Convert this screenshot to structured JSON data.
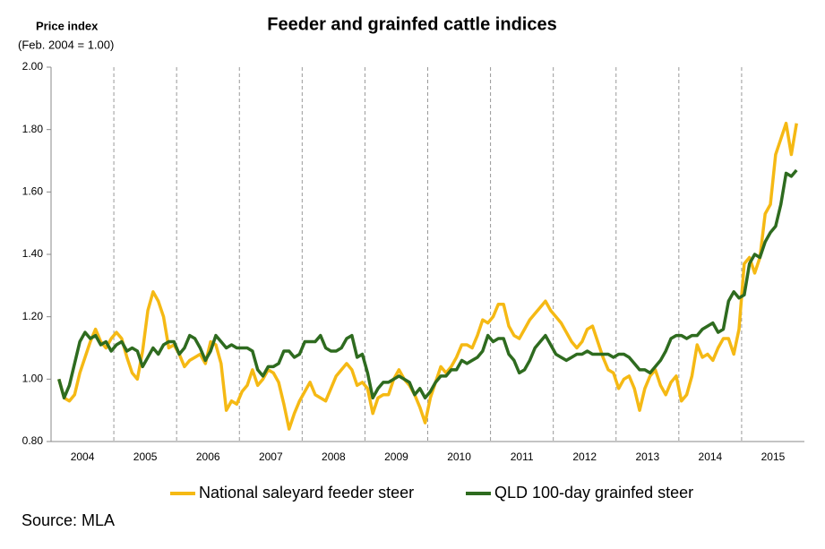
{
  "chart_data": {
    "type": "line",
    "title": "Feeder and grainfed cattle indices",
    "y_axis_title": "Price index",
    "y_axis_subtitle": "(Feb. 2004 = 1.00)",
    "source": "Source: MLA",
    "categories": [
      null,
      null,
      null,
      null,
      null,
      null,
      "2004",
      null,
      null,
      null,
      null,
      null,
      null,
      null,
      null,
      null,
      null,
      null,
      "2005",
      null,
      null,
      null,
      null,
      null,
      null,
      null,
      null,
      null,
      null,
      null,
      "2006",
      null,
      null,
      null,
      null,
      null,
      null,
      null,
      null,
      null,
      null,
      null,
      "2007",
      null,
      null,
      null,
      null,
      null,
      null,
      null,
      null,
      null,
      null,
      null,
      "2008",
      null,
      null,
      null,
      null,
      null,
      null,
      null,
      null,
      null,
      null,
      null,
      "2009",
      null,
      null,
      null,
      null,
      null,
      null,
      null,
      null,
      null,
      null,
      null,
      "2010",
      null,
      null,
      null,
      null,
      null,
      null,
      null,
      null,
      null,
      null,
      null,
      "2011",
      null,
      null,
      null,
      null,
      null,
      null,
      null,
      null,
      null,
      null,
      null,
      "2012",
      null,
      null,
      null,
      null,
      null,
      null,
      null,
      null,
      null,
      null,
      null,
      "2013",
      null,
      null,
      null,
      null,
      null,
      null,
      null,
      null,
      null,
      null,
      null,
      "2014",
      null,
      null,
      null,
      null,
      null,
      null,
      null,
      null,
      null,
      null,
      null,
      "2015",
      null,
      null,
      null,
      null,
      null
    ],
    "series": [
      {
        "name": "National saleyard feeder steer",
        "color": "#f5b914",
        "values": [
          null,
          1.0,
          0.94,
          0.93,
          0.95,
          1.02,
          1.07,
          1.12,
          1.16,
          1.12,
          1.1,
          1.13,
          1.15,
          1.13,
          1.07,
          1.02,
          1.0,
          1.09,
          1.22,
          1.28,
          1.25,
          1.2,
          1.1,
          1.11,
          1.08,
          1.04,
          1.06,
          1.07,
          1.08,
          1.05,
          1.12,
          1.11,
          1.05,
          0.9,
          0.93,
          0.92,
          0.96,
          0.98,
          1.03,
          0.98,
          1.0,
          1.03,
          1.02,
          0.99,
          0.92,
          0.84,
          0.89,
          0.93,
          0.96,
          0.99,
          0.95,
          0.94,
          0.93,
          0.97,
          1.01,
          1.03,
          1.05,
          1.03,
          0.98,
          0.99,
          0.97,
          0.89,
          0.94,
          0.95,
          0.95,
          1.0,
          1.03,
          1.0,
          0.98,
          0.95,
          0.91,
          0.86,
          0.94,
          0.99,
          1.04,
          1.02,
          1.04,
          1.07,
          1.11,
          1.11,
          1.1,
          1.14,
          1.19,
          1.18,
          1.2,
          1.24,
          1.24,
          1.17,
          1.14,
          1.13,
          1.16,
          1.19,
          1.21,
          1.23,
          1.25,
          1.22,
          1.2,
          1.18,
          1.15,
          1.12,
          1.1,
          1.12,
          1.16,
          1.17,
          1.12,
          1.07,
          1.03,
          1.02,
          0.97,
          1.0,
          1.01,
          0.97,
          0.9,
          0.97,
          1.01,
          1.03,
          0.98,
          0.95,
          0.99,
          1.01,
          0.93,
          0.95,
          1.01,
          1.11,
          1.07,
          1.08,
          1.06,
          1.1,
          1.13,
          1.13,
          1.08,
          1.16,
          1.37,
          1.39,
          1.34,
          1.39,
          1.53,
          1.56,
          1.72,
          1.77,
          1.82,
          1.72,
          1.82,
          null
        ]
      },
      {
        "name": "QLD 100-day grainfed steer",
        "color": "#2e6b1f",
        "values": [
          null,
          1.0,
          0.94,
          0.98,
          1.05,
          1.12,
          1.15,
          1.13,
          1.14,
          1.11,
          1.12,
          1.09,
          1.11,
          1.12,
          1.09,
          1.1,
          1.09,
          1.04,
          1.07,
          1.1,
          1.08,
          1.11,
          1.12,
          1.12,
          1.08,
          1.1,
          1.14,
          1.13,
          1.1,
          1.06,
          1.09,
          1.14,
          1.12,
          1.1,
          1.11,
          1.1,
          1.1,
          1.1,
          1.09,
          1.03,
          1.01,
          1.04,
          1.04,
          1.05,
          1.09,
          1.09,
          1.07,
          1.08,
          1.12,
          1.12,
          1.12,
          1.14,
          1.1,
          1.09,
          1.09,
          1.1,
          1.13,
          1.14,
          1.07,
          1.08,
          1.02,
          0.94,
          0.97,
          0.99,
          0.99,
          1.0,
          1.01,
          1.0,
          0.99,
          0.95,
          0.97,
          0.94,
          0.96,
          0.99,
          1.01,
          1.01,
          1.03,
          1.03,
          1.06,
          1.05,
          1.06,
          1.07,
          1.09,
          1.14,
          1.12,
          1.13,
          1.13,
          1.08,
          1.06,
          1.02,
          1.03,
          1.06,
          1.1,
          1.12,
          1.14,
          1.11,
          1.08,
          1.07,
          1.06,
          1.07,
          1.08,
          1.08,
          1.09,
          1.08,
          1.08,
          1.08,
          1.08,
          1.07,
          1.08,
          1.08,
          1.07,
          1.05,
          1.03,
          1.03,
          1.02,
          1.04,
          1.06,
          1.09,
          1.13,
          1.14,
          1.14,
          1.13,
          1.14,
          1.14,
          1.16,
          1.17,
          1.18,
          1.15,
          1.16,
          1.25,
          1.28,
          1.26,
          1.27,
          1.37,
          1.4,
          1.39,
          1.44,
          1.47,
          1.49,
          1.56,
          1.66,
          1.65,
          1.67,
          null
        ]
      }
    ],
    "ylim": [
      0.8,
      2.0
    ],
    "yticks": [
      {
        "value": 0.8,
        "label": "0.80"
      },
      {
        "value": 1.0,
        "label": "1.00"
      },
      {
        "value": 1.2,
        "label": "1.20"
      },
      {
        "value": 1.4,
        "label": "1.40"
      },
      {
        "value": 1.6,
        "label": "1.60"
      },
      {
        "value": 1.8,
        "label": "1.80"
      },
      {
        "value": 2.0,
        "label": "2.00"
      }
    ],
    "legend": "bottom"
  }
}
